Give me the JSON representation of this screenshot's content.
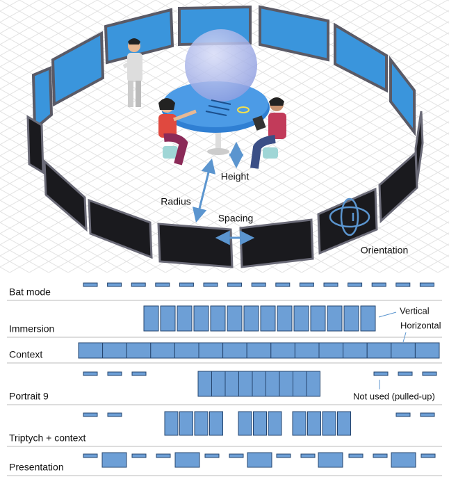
{
  "illustration": {
    "labels": {
      "height": "Height",
      "radius": "Radius",
      "spacing": "Spacing",
      "orientation": "Orientation"
    }
  },
  "modes": {
    "rows": [
      {
        "label": "Bat mode"
      },
      {
        "label": "Immersion"
      },
      {
        "label": "Context"
      },
      {
        "label": "Portrait 9"
      },
      {
        "label": "Triptych + context"
      },
      {
        "label": "Presentation"
      }
    ],
    "annotations": {
      "vertical": "Vertical",
      "horizontal": "Horizontal",
      "not_used": "Not used (pulled-up)"
    }
  }
}
